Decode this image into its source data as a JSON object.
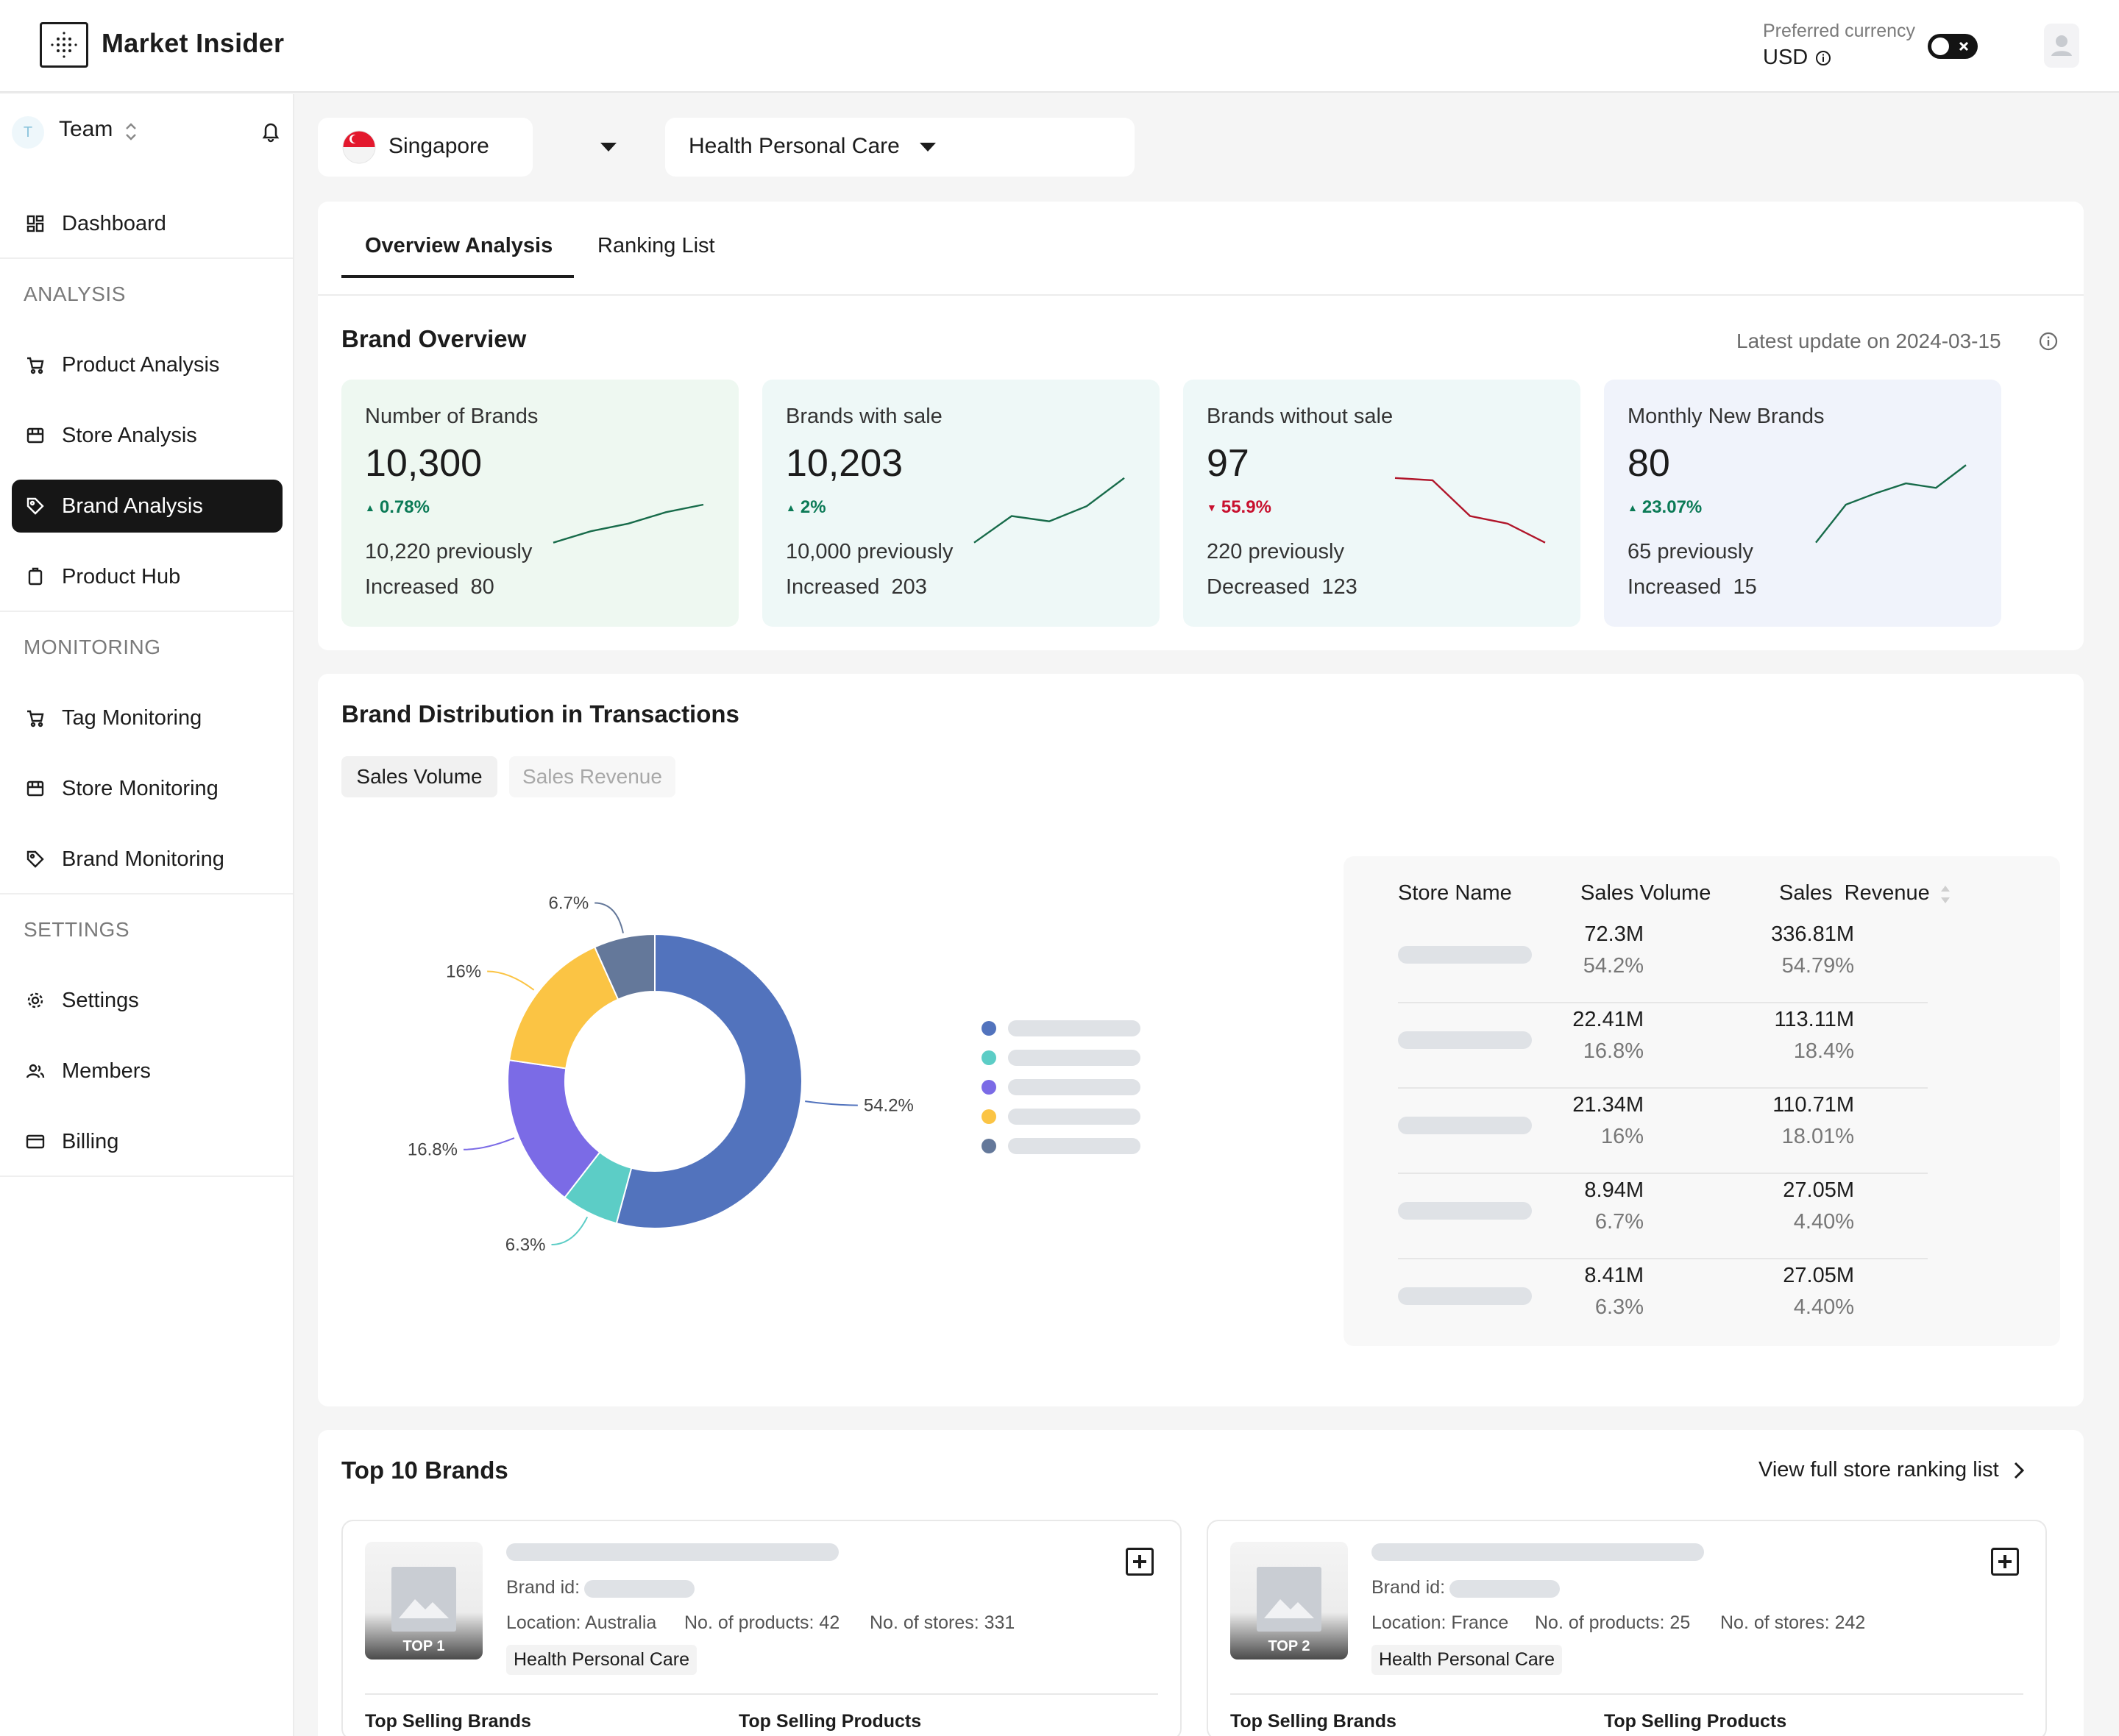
{
  "header": {
    "app_title": "Market Insider",
    "currency_label": "Preferred currency",
    "currency_value": "USD"
  },
  "sidebar": {
    "team_initial": "T",
    "team_name": "Team",
    "dashboard": "Dashboard",
    "sections": {
      "analysis": "ANALYSIS",
      "monitoring": "MONITORING",
      "settings": "SETTINGS"
    },
    "analysis_items": [
      "Product Analysis",
      "Store Analysis",
      "Brand Analysis",
      "Product Hub"
    ],
    "monitoring_items": [
      "Tag Monitoring",
      "Store Monitoring",
      "Brand Monitoring"
    ],
    "settings_items": [
      "Settings",
      "Members",
      "Billing"
    ],
    "active_item": "Brand Analysis"
  },
  "filters": {
    "country": "Singapore",
    "category": "Health Personal Care"
  },
  "tabs": [
    "Overview Analysis",
    "Ranking List"
  ],
  "brand_overview": {
    "title": "Brand Overview",
    "update": "Latest update on 2024-03-15",
    "stats": [
      {
        "label": "Number of Brands",
        "value": "10,300",
        "change": "0.78%",
        "direction": "up",
        "previous": "10,220 previously",
        "delta_label": "Increased",
        "delta": "80",
        "bg": "#eef8f1",
        "trend": [
          10,
          25,
          35,
          50,
          60
        ]
      },
      {
        "label": "Brands with sale",
        "value": "10,203",
        "change": "2%",
        "direction": "up",
        "previous": "10,000 previously",
        "delta_label": "Increased",
        "delta": "203",
        "bg": "#eef8f7",
        "trend": [
          10,
          45,
          38,
          58,
          95
        ]
      },
      {
        "label": "Brands without sale",
        "value": "97",
        "change": "55.9%",
        "direction": "down",
        "previous": "220 previously",
        "delta_label": "Decreased",
        "delta": "123",
        "bg": "#eef8f8",
        "trend": [
          95,
          92,
          45,
          35,
          10
        ]
      },
      {
        "label": "Monthly New Brands",
        "value": "80",
        "change": "23.07%",
        "direction": "up",
        "previous": "65 previously",
        "delta_label": "Increased",
        "delta": "15",
        "bg": "#f0f3fb",
        "trend": [
          10,
          60,
          75,
          88,
          82,
          112
        ]
      }
    ]
  },
  "distribution": {
    "title": "Brand Distribution in Transactions",
    "toggle": [
      "Sales Volume",
      "Sales Revenue"
    ],
    "table_headers": [
      "Store Name",
      "Sales Volume",
      "Sales  Revenue"
    ],
    "rows": [
      {
        "volume": "72.3M",
        "volume_pct": "54.2%",
        "revenue": "336.81M",
        "revenue_pct": "54.79%"
      },
      {
        "volume": "22.41M",
        "volume_pct": "16.8%",
        "revenue": "113.11M",
        "revenue_pct": "18.4%"
      },
      {
        "volume": "21.34M",
        "volume_pct": "16%",
        "revenue": "110.71M",
        "revenue_pct": "18.01%"
      },
      {
        "volume": "8.94M",
        "volume_pct": "6.7%",
        "revenue": "27.05M",
        "revenue_pct": "4.40%"
      },
      {
        "volume": "8.41M",
        "volume_pct": "6.3%",
        "revenue": "27.05M",
        "revenue_pct": "4.40%"
      }
    ]
  },
  "chart_data": {
    "type": "pie",
    "variant": "donut",
    "slices": [
      {
        "label": "54.2%",
        "value": 54.2,
        "color": "#5273bd"
      },
      {
        "label": "6.3%",
        "value": 6.3,
        "color": "#5ccdc6"
      },
      {
        "label": "16.8%",
        "value": 16.8,
        "color": "#7b6be6"
      },
      {
        "label": "16%",
        "value": 16.0,
        "color": "#fbc444"
      },
      {
        "label": "6.7%",
        "value": 6.7,
        "color": "#64789a"
      }
    ],
    "legend": "right"
  },
  "top_brands": {
    "title": "Top 10 Brands",
    "view_link": "View full store ranking list",
    "brands": [
      {
        "rank": "TOP 1",
        "id_label": "Brand id:",
        "location": "Location: Australia",
        "products": "No. of products: 42",
        "stores": "No. of stores: 331",
        "category": "Health Personal Care",
        "sub1": "Top Selling Brands",
        "sub2": "Top Selling Products"
      },
      {
        "rank": "TOP 2",
        "id_label": "Brand id:",
        "location": "Location: France",
        "products": "No. of products: 25",
        "stores": "No. of stores: 242",
        "category": "Health Personal Care",
        "sub1": "Top Selling Brands",
        "sub2": "Top Selling Products"
      }
    ]
  }
}
